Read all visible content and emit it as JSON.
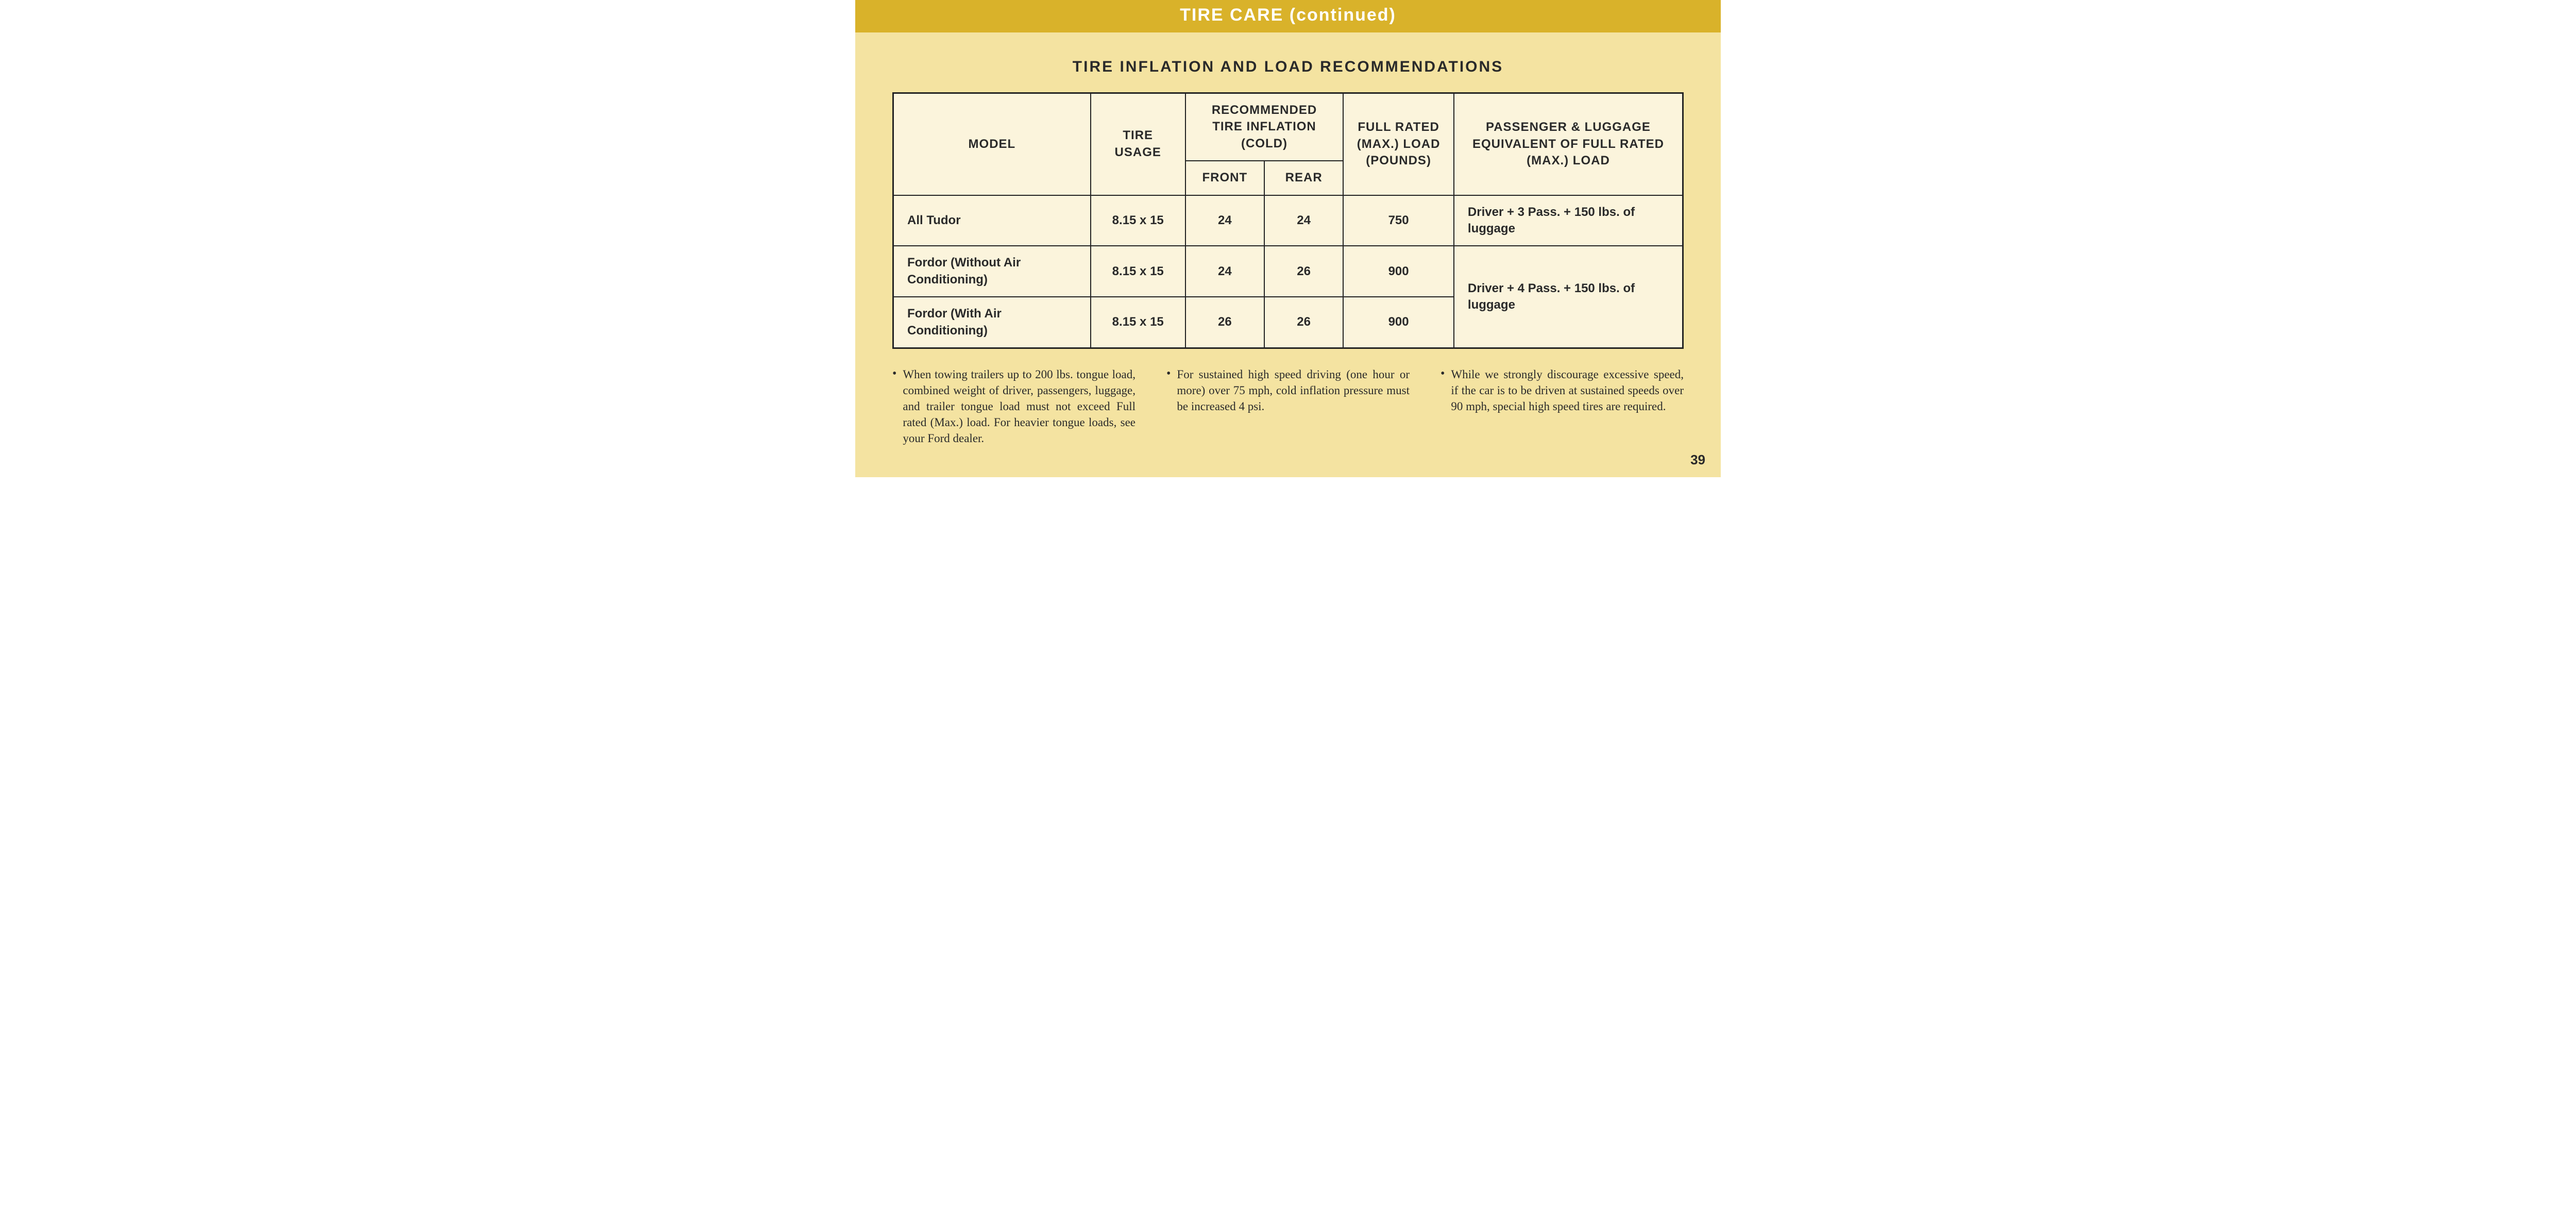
{
  "colors": {
    "page_bg": "#f4e3a1",
    "header_band": "#d9b22a",
    "header_text": "#ffffff",
    "table_bg": "#fbf4dc",
    "border": "#222222",
    "body_text": "#2a2a2a"
  },
  "typography": {
    "header_fontsize_pt": 26,
    "title_fontsize_pt": 22,
    "table_fontsize_pt": 18,
    "notes_fontsize_pt": 17,
    "page_number_fontsize_pt": 20
  },
  "header": {
    "title": "TIRE CARE (continued)"
  },
  "table_section": {
    "title": "TIRE INFLATION AND LOAD RECOMMENDATIONS",
    "columns": {
      "model": "MODEL",
      "usage": "TIRE USAGE",
      "inflation_group": "RECOMMENDED TIRE INFLATION (COLD)",
      "front": "FRONT",
      "rear": "REAR",
      "load": "FULL RATED (MAX.) LOAD (POUNDS)",
      "equiv": "PASSENGER & LUGGAGE EQUIVALENT OF FULL RATED (MAX.) LOAD"
    },
    "rows": [
      {
        "model": "All Tudor",
        "usage": "8.15 x 15",
        "front": "24",
        "rear": "24",
        "load": "750",
        "equiv": "Driver + 3 Pass. + 150 lbs. of luggage"
      },
      {
        "model": "Fordor (Without Air Conditioning)",
        "usage": "8.15 x 15",
        "front": "24",
        "rear": "26",
        "load": "900",
        "equiv": "Driver + 4 Pass. + 150 lbs. of luggage"
      },
      {
        "model": "Fordor (With Air Conditioning)",
        "usage": "8.15 x 15",
        "front": "26",
        "rear": "26",
        "load": "900"
      }
    ]
  },
  "notes": [
    "When towing trailers up to 200 lbs. tongue load, combined weight of driver, passengers, luggage, and trailer tongue load must not exceed Full rated (Max.) load. For heavier tongue loads, see your Ford dealer.",
    "For sustained high speed driving (one hour or more) over 75 mph, cold inflation pressure must be increased 4 psi.",
    "While we strongly discourage excessive speed, if the car is to be driven at sustained speeds over 90 mph, special high speed tires are required."
  ],
  "page_number": "39"
}
